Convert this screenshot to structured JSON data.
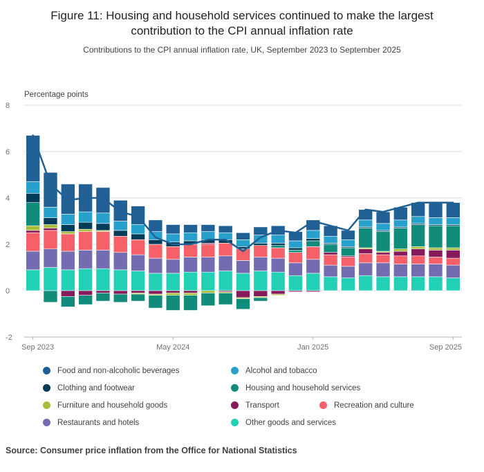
{
  "header": {
    "title": "Figure 11: Housing and household services continued to make the largest contribution to the CPI annual inflation rate",
    "subtitle": "Contributions to the CPI annual inflation rate, UK, September 2023 to September 2025"
  },
  "source": "Source: Consumer price inflation from the Office for National Statistics",
  "chart_data": {
    "type": "bar",
    "stacked": true,
    "title": "Contributions to the CPI annual inflation rate, UK, September 2023 to September 2025",
    "ylabel": "Percentage points",
    "xlabel": "",
    "ylim": [
      -2,
      8
    ],
    "yticks": [
      8,
      6,
      4,
      2,
      0,
      -2
    ],
    "grid": "horizontal",
    "legend_position": "bottom",
    "categories": [
      "Sep 2023",
      "Oct 2023",
      "Nov 2023",
      "Dec 2023",
      "Jan 2024",
      "Feb 2024",
      "Mar 2024",
      "Apr 2024",
      "May 2024",
      "Jun 2024",
      "Jul 2024",
      "Aug 2024",
      "Sep 2024",
      "Oct 2024",
      "Nov 2024",
      "Dec 2024",
      "Jan 2025",
      "Feb 2025",
      "Mar 2025",
      "Apr 2025",
      "May 2025",
      "Jun 2025",
      "Jul 2025",
      "Aug 2025",
      "Sep 2025"
    ],
    "x_ticks": [
      {
        "index": 0,
        "label": "Sep 2023"
      },
      {
        "index": 8,
        "label": "May 2024"
      },
      {
        "index": 16,
        "label": "Jan 2025"
      },
      {
        "index": 24,
        "label": "Sep 2025"
      }
    ],
    "series": [
      {
        "name": "Food and non-alcoholic beverages",
        "color": "#206095",
        "values": [
          2.0,
          1.5,
          1.3,
          1.2,
          1.1,
          0.9,
          0.8,
          0.5,
          0.4,
          0.35,
          0.3,
          0.3,
          0.3,
          0.35,
          0.4,
          0.4,
          0.45,
          0.45,
          0.4,
          0.45,
          0.5,
          0.55,
          0.6,
          0.65,
          0.65
        ]
      },
      {
        "name": "Alcohol and tobacco",
        "color": "#27a0cc",
        "values": [
          0.5,
          0.45,
          0.45,
          0.45,
          0.45,
          0.4,
          0.4,
          0.35,
          0.35,
          0.35,
          0.35,
          0.3,
          0.3,
          0.35,
          0.35,
          0.3,
          0.35,
          0.3,
          0.3,
          0.3,
          0.3,
          0.3,
          0.3,
          0.3,
          0.3
        ]
      },
      {
        "name": "Clothing and footwear",
        "color": "#003c57",
        "values": [
          0.4,
          0.3,
          0.3,
          0.3,
          0.3,
          0.25,
          0.25,
          0.2,
          0.2,
          0.15,
          0.15,
          0.15,
          0.1,
          0.1,
          0.1,
          0.1,
          0.1,
          0.05,
          0.05,
          0.05,
          0.05,
          0.05,
          0.05,
          0.05,
          0.05
        ]
      },
      {
        "name": "Housing and household services",
        "color": "#118c7b",
        "values": [
          1.0,
          -0.5,
          -0.45,
          -0.4,
          -0.35,
          -0.35,
          -0.3,
          -0.55,
          -0.65,
          -0.65,
          -0.55,
          -0.5,
          -0.45,
          -0.15,
          0.1,
          0.1,
          0.25,
          0.35,
          0.35,
          0.85,
          0.85,
          0.9,
          0.95,
          0.95,
          0.95
        ]
      },
      {
        "name": "Furniture and household goods",
        "color": "#a8bd3a",
        "values": [
          0.2,
          0.15,
          0.1,
          0.1,
          0.05,
          0.0,
          -0.05,
          -0.05,
          -0.1,
          -0.1,
          -0.1,
          -0.05,
          -0.05,
          -0.05,
          -0.05,
          0.0,
          0.0,
          0.0,
          0.0,
          0.05,
          0.05,
          0.1,
          0.1,
          0.1,
          0.1
        ]
      },
      {
        "name": "Transport",
        "color": "#871a5b",
        "values": [
          0.1,
          0.1,
          -0.25,
          -0.2,
          -0.1,
          -0.15,
          -0.1,
          -0.15,
          -0.1,
          -0.1,
          0.05,
          -0.05,
          -0.3,
          -0.25,
          -0.15,
          -0.05,
          -0.05,
          0.1,
          0.05,
          0.2,
          0.1,
          0.2,
          0.3,
          0.3,
          0.35
        ]
      },
      {
        "name": "Recreation and culture",
        "color": "#f66068",
        "values": [
          0.8,
          0.8,
          0.75,
          0.8,
          0.8,
          0.7,
          0.65,
          0.6,
          0.55,
          0.55,
          0.55,
          0.55,
          0.5,
          0.5,
          0.45,
          0.45,
          0.55,
          0.45,
          0.4,
          0.4,
          0.35,
          0.35,
          0.35,
          0.3,
          0.3
        ]
      },
      {
        "name": "Restaurants and hotels",
        "color": "#746cb1",
        "values": [
          0.8,
          0.8,
          0.8,
          0.8,
          0.8,
          0.75,
          0.7,
          0.65,
          0.6,
          0.65,
          0.65,
          0.65,
          0.55,
          0.6,
          0.6,
          0.55,
          0.6,
          0.5,
          0.5,
          0.55,
          0.6,
          0.55,
          0.55,
          0.55,
          0.55
        ]
      },
      {
        "name": "Other goods and services",
        "color": "#22d0b6",
        "values": [
          0.9,
          1.0,
          0.9,
          0.95,
          0.95,
          0.9,
          0.85,
          0.75,
          0.75,
          0.8,
          0.8,
          0.85,
          0.75,
          0.85,
          0.8,
          0.65,
          0.75,
          0.6,
          0.55,
          0.65,
          0.6,
          0.6,
          0.6,
          0.6,
          0.55
        ]
      }
    ],
    "line_series": {
      "name": "CPI annual inflation rate",
      "color": "#206095",
      "values": [
        6.7,
        4.6,
        3.9,
        4.0,
        4.0,
        3.4,
        3.2,
        2.3,
        2.0,
        2.0,
        2.2,
        2.2,
        1.7,
        2.3,
        2.6,
        2.5,
        3.0,
        2.8,
        2.6,
        3.5,
        3.4,
        3.6,
        3.8,
        3.8,
        3.8
      ]
    }
  }
}
